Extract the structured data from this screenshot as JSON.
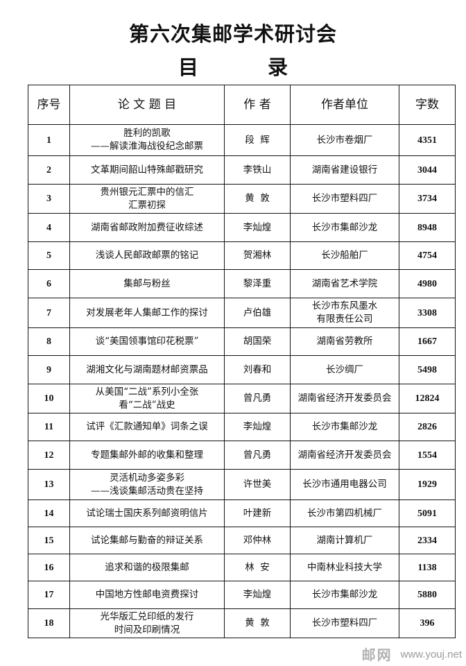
{
  "document": {
    "title": "第六次集邮学术研讨会",
    "subtitle": "目 录"
  },
  "table": {
    "headers": [
      "序号",
      "论 文 题 目",
      "作 者",
      "作者单位",
      "字数"
    ],
    "rows": [
      {
        "no": "1",
        "title": [
          "胜利的凯歌",
          "——解读淮海战役纪念邮票"
        ],
        "author": "段  辉",
        "unit": [
          "长沙市卷烟厂"
        ],
        "words": "4351"
      },
      {
        "no": "2",
        "title": [
          "文革期间韶山特殊邮戳研究"
        ],
        "author": "李铁山",
        "unit": [
          "湖南省建设银行"
        ],
        "words": "3044"
      },
      {
        "no": "3",
        "title": [
          "贵州银元汇票中的信汇",
          "汇票初探"
        ],
        "author": "黄  敦",
        "unit": [
          "长沙市塑料四厂"
        ],
        "words": "3734"
      },
      {
        "no": "4",
        "title": [
          "湖南省邮政附加费征收综述"
        ],
        "author": "李灿煌",
        "unit": [
          "长沙市集邮沙龙"
        ],
        "words": "8948"
      },
      {
        "no": "5",
        "title": [
          "浅谈人民邮政邮票的铭记"
        ],
        "author": "贺湘林",
        "unit": [
          "长沙船舶厂"
        ],
        "words": "4754"
      },
      {
        "no": "6",
        "title": [
          "集邮与粉丝"
        ],
        "author": "黎泽重",
        "unit": [
          "湖南省艺术学院"
        ],
        "words": "4980"
      },
      {
        "no": "7",
        "title": [
          "对发展老年人集邮工作的探讨"
        ],
        "author": "卢伯雄",
        "unit": [
          "长沙市东风墨水",
          "有限责任公司"
        ],
        "words": "3308"
      },
      {
        "no": "8",
        "title": [
          "谈“美国领事馆印花税票”"
        ],
        "author": "胡国荣",
        "unit": [
          "湖南省劳教所"
        ],
        "words": "1667"
      },
      {
        "no": "9",
        "title": [
          "湖湘文化与湖南题材邮资票品"
        ],
        "author": "刘春和",
        "unit": [
          "长沙绸厂"
        ],
        "words": "5498"
      },
      {
        "no": "10",
        "title": [
          "从美国“二战”系列小全张",
          "看“二战”战史"
        ],
        "author": "曾凡勇",
        "unit": [
          "湖南省经济开发委员会"
        ],
        "words": "12824"
      },
      {
        "no": "11",
        "title": [
          "试评《汇款通知单》词条之误"
        ],
        "author": "李灿煌",
        "unit": [
          "长沙市集邮沙龙"
        ],
        "words": "2826"
      },
      {
        "no": "12",
        "title": [
          "专题集邮外邮的收集和整理"
        ],
        "author": "曾凡勇",
        "unit": [
          "湖南省经济开发委员会"
        ],
        "words": "1554"
      },
      {
        "no": "13",
        "title": [
          "灵活机动多姿多彩",
          "——浅谈集邮活动贵在坚持"
        ],
        "author": "许世美",
        "unit": [
          "长沙市通用电器公司"
        ],
        "words": "1929"
      },
      {
        "no": "14",
        "title": [
          "试论瑞士国庆系列邮资明信片"
        ],
        "author": "叶建新",
        "unit": [
          "长沙市第四机械厂"
        ],
        "words": "5091"
      },
      {
        "no": "15",
        "title": [
          "试论集邮与勤奋的辩证关系"
        ],
        "author": "邓仲林",
        "unit": [
          "湖南计算机厂"
        ],
        "words": "2334"
      },
      {
        "no": "16",
        "title": [
          "追求和谐的极限集邮"
        ],
        "author": "林  安",
        "unit": [
          "中南林业科技大学"
        ],
        "words": "1138"
      },
      {
        "no": "17",
        "title": [
          "中国地方性邮电资费探讨"
        ],
        "author": "李灿煌",
        "unit": [
          "长沙市集邮沙龙"
        ],
        "words": "5880"
      },
      {
        "no": "18",
        "title": [
          "光华版汇兑印纸的发行",
          "时间及印刷情况"
        ],
        "author": "黄  敦",
        "unit": [
          "长沙市塑料四厂"
        ],
        "words": "396"
      }
    ]
  },
  "watermark": {
    "logo_text": "邮网",
    "url": "www.youj.net"
  }
}
